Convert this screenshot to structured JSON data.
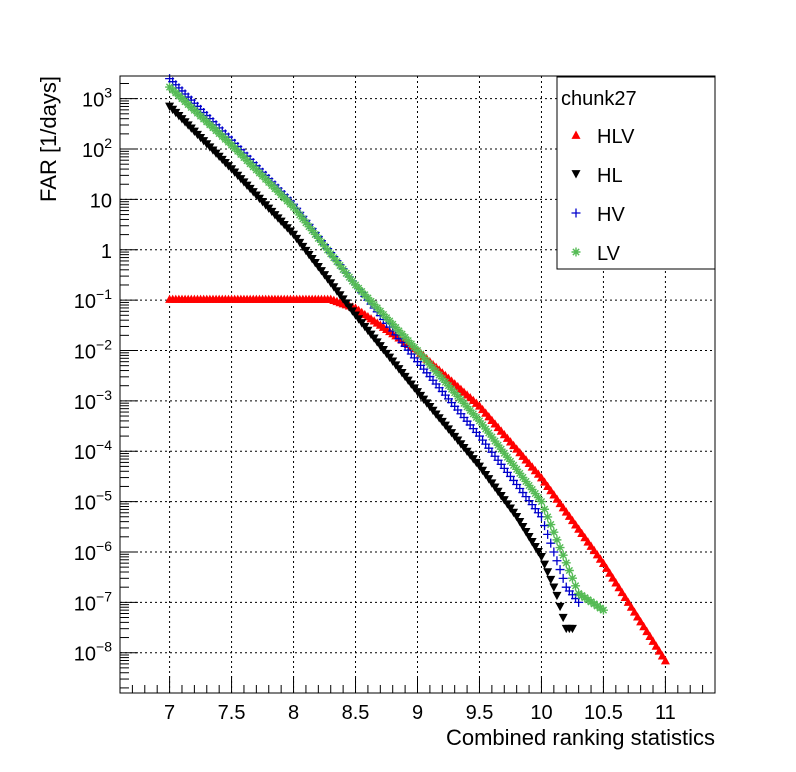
{
  "chart_data": {
    "type": "scatter",
    "xlabel": "Combined ranking statistics",
    "ylabel": "FAR [1/days]",
    "log_y": true,
    "grid": true,
    "xlim": [
      6.6,
      11.4
    ],
    "ylim_log10": [
      -8.8,
      3.45
    ],
    "x_ticks": [
      "7",
      "7.5",
      "8",
      "8.5",
      "9",
      "9.5",
      "10",
      "10.5",
      "11"
    ],
    "y_ticks": [
      {
        "mant": "10",
        "exp": "3"
      },
      {
        "mant": "10",
        "exp": "2"
      },
      {
        "mant": "10",
        "exp": ""
      },
      {
        "mant": "1",
        "exp": ""
      },
      {
        "mant": "10",
        "exp": "−1"
      },
      {
        "mant": "10",
        "exp": "−2"
      },
      {
        "mant": "10",
        "exp": "−3"
      },
      {
        "mant": "10",
        "exp": "−4"
      },
      {
        "mant": "10",
        "exp": "−5"
      },
      {
        "mant": "10",
        "exp": "−6"
      },
      {
        "mant": "10",
        "exp": "−7"
      },
      {
        "mant": "10",
        "exp": "−8"
      }
    ],
    "legend": {
      "title": "chunk27",
      "placement": "top-right"
    },
    "series": [
      {
        "name": "HLV",
        "color": "#ff0000",
        "marker": "triangle-up",
        "x": [
          7.0,
          8.3,
          8.5,
          9.0,
          9.5,
          10.0,
          10.5,
          11.0
        ],
        "y": [
          0.105,
          0.105,
          0.07,
          0.01,
          0.0008,
          3e-05,
          6e-07,
          7e-09
        ]
      },
      {
        "name": "HL",
        "color": "#000000",
        "marker": "triangle-down",
        "x": [
          7.0,
          7.5,
          8.0,
          8.5,
          9.0,
          9.5,
          9.8,
          10.0,
          10.12,
          10.2,
          10.25
        ],
        "y": [
          700,
          40,
          2,
          0.05,
          0.0015,
          5e-05,
          5e-06,
          8e-07,
          1.5e-07,
          3e-08,
          3e-08
        ]
      },
      {
        "name": "HV",
        "color": "#0000cc",
        "marker": "plus",
        "x": [
          7.0,
          7.5,
          8.0,
          8.5,
          9.0,
          9.5,
          10.0,
          10.2,
          10.3
        ],
        "y": [
          2500,
          150,
          8,
          0.2,
          0.006,
          0.0002,
          5e-06,
          2e-07,
          1e-07
        ]
      },
      {
        "name": "LV",
        "color": "#55bb55",
        "marker": "star",
        "x": [
          7.0,
          7.5,
          8.0,
          8.5,
          9.0,
          9.5,
          10.0,
          10.3,
          10.5
        ],
        "y": [
          1700,
          120,
          7,
          0.2,
          0.01,
          0.0004,
          1e-05,
          1.5e-07,
          7e-08
        ]
      }
    ]
  }
}
